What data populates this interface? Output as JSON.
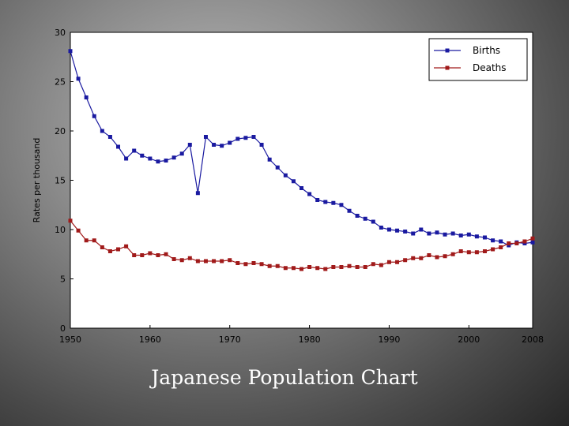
{
  "slide": {
    "caption": "Japanese Population Chart"
  },
  "chart_data": {
    "type": "line",
    "title": "",
    "xlabel": "",
    "ylabel": "Rates per thousand",
    "xlim": [
      1950,
      2008
    ],
    "ylim": [
      0,
      30
    ],
    "xticks": [
      1950,
      1960,
      1970,
      1980,
      1990,
      2000,
      2008
    ],
    "yticks": [
      0,
      5,
      10,
      15,
      20,
      25,
      30
    ],
    "grid": false,
    "legend_position": "top-right",
    "x": [
      1950,
      1951,
      1952,
      1953,
      1954,
      1955,
      1956,
      1957,
      1958,
      1959,
      1960,
      1961,
      1962,
      1963,
      1964,
      1965,
      1966,
      1967,
      1968,
      1969,
      1970,
      1971,
      1972,
      1973,
      1974,
      1975,
      1976,
      1977,
      1978,
      1979,
      1980,
      1981,
      1982,
      1983,
      1984,
      1985,
      1986,
      1987,
      1988,
      1989,
      1990,
      1991,
      1992,
      1993,
      1994,
      1995,
      1996,
      1997,
      1998,
      1999,
      2000,
      2001,
      2002,
      2003,
      2004,
      2005,
      2006,
      2007,
      2008
    ],
    "series": [
      {
        "name": "Births",
        "color": "#1a1aa0",
        "values": [
          28.1,
          25.3,
          23.4,
          21.5,
          20.0,
          19.4,
          18.4,
          17.2,
          18.0,
          17.5,
          17.2,
          16.9,
          17.0,
          17.3,
          17.7,
          18.6,
          13.7,
          19.4,
          18.6,
          18.5,
          18.8,
          19.2,
          19.3,
          19.4,
          18.6,
          17.1,
          16.3,
          15.5,
          14.9,
          14.2,
          13.6,
          13.0,
          12.8,
          12.7,
          12.5,
          11.9,
          11.4,
          11.1,
          10.8,
          10.2,
          10.0,
          9.9,
          9.8,
          9.6,
          10.0,
          9.6,
          9.7,
          9.5,
          9.6,
          9.4,
          9.5,
          9.3,
          9.2,
          8.9,
          8.8,
          8.4,
          8.7,
          8.6,
          8.7
        ]
      },
      {
        "name": "Deaths",
        "color": "#a01a1a",
        "values": [
          10.9,
          9.9,
          8.9,
          8.9,
          8.2,
          7.8,
          8.0,
          8.3,
          7.4,
          7.4,
          7.6,
          7.4,
          7.5,
          7.0,
          6.9,
          7.1,
          6.8,
          6.8,
          6.8,
          6.8,
          6.9,
          6.6,
          6.5,
          6.6,
          6.5,
          6.3,
          6.3,
          6.1,
          6.1,
          6.0,
          6.2,
          6.1,
          6.0,
          6.2,
          6.2,
          6.3,
          6.2,
          6.2,
          6.5,
          6.4,
          6.7,
          6.7,
          6.9,
          7.1,
          7.1,
          7.4,
          7.2,
          7.3,
          7.5,
          7.8,
          7.7,
          7.7,
          7.8,
          8.0,
          8.2,
          8.6,
          8.6,
          8.8,
          9.1
        ]
      }
    ]
  }
}
